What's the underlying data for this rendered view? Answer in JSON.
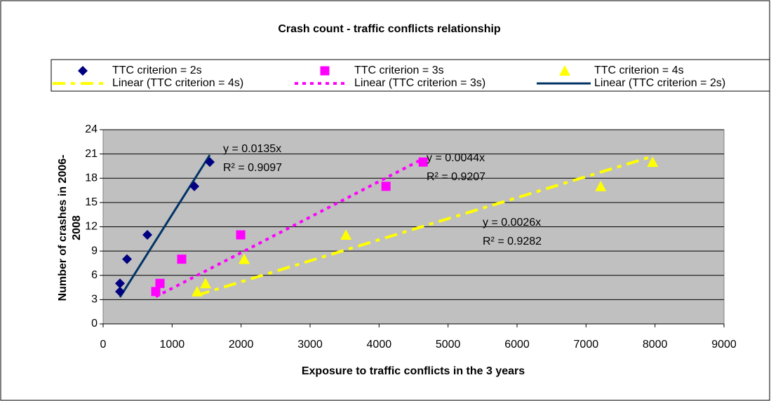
{
  "chart_data": {
    "type": "scatter",
    "title": "Crash count - traffic conflicts relationship",
    "x_label": "Exposure to traffic conflicts in the 3 years",
    "y_label": "Number of crashes in 2006-2008",
    "xlim": [
      0,
      9000
    ],
    "xticks": [
      0,
      1000,
      2000,
      3000,
      4000,
      5000,
      6000,
      7000,
      8000,
      9000
    ],
    "ylim": [
      0,
      24
    ],
    "yticks": [
      0,
      3,
      6,
      9,
      12,
      15,
      18,
      21,
      24
    ],
    "grid": true,
    "legend": "top",
    "plot_background": "#c0c0c0",
    "series": [
      {
        "name": "TTC criterion = 2s",
        "color": "#000080",
        "marker": "diamond",
        "x": [
          244,
          244,
          346,
          641,
          1322,
          1546
        ],
        "values": [
          4,
          5,
          8,
          11,
          17,
          20
        ]
      },
      {
        "name": "TTC criterion = 3s",
        "color": "#ff00ff",
        "marker": "square",
        "x": [
          763,
          824,
          1139,
          1994,
          4100,
          4639
        ],
        "values": [
          4,
          5,
          8,
          11,
          17,
          20
        ]
      },
      {
        "name": "TTC criterion = 4s",
        "color": "#ffff00",
        "marker": "triangle",
        "x": [
          1363,
          1485,
          2045,
          3520,
          7213,
          7965
        ],
        "values": [
          4,
          5,
          8,
          11,
          17,
          20
        ]
      }
    ],
    "trendlines": [
      {
        "name": "Linear (TTC criterion = 4s)",
        "series": 2,
        "color": "#ffff00",
        "style": "dash-dot",
        "slope": 0.0026,
        "equation": "y = 0.0026x",
        "r_squared": "R² = 0.9282"
      },
      {
        "name": "Linear (TTC criterion = 3s)",
        "series": 1,
        "color": "#ff00ff",
        "style": "dotted",
        "slope": 0.0044,
        "equation": "y = 0.0044x",
        "r_squared": "R² = 0.9207"
      },
      {
        "name": "Linear (TTC criterion = 2s)",
        "series": 0,
        "color": "#003366",
        "style": "solid",
        "slope": 0.0135,
        "equation": "y = 0.0135x",
        "r_squared": "R² = 0.9097"
      }
    ]
  }
}
